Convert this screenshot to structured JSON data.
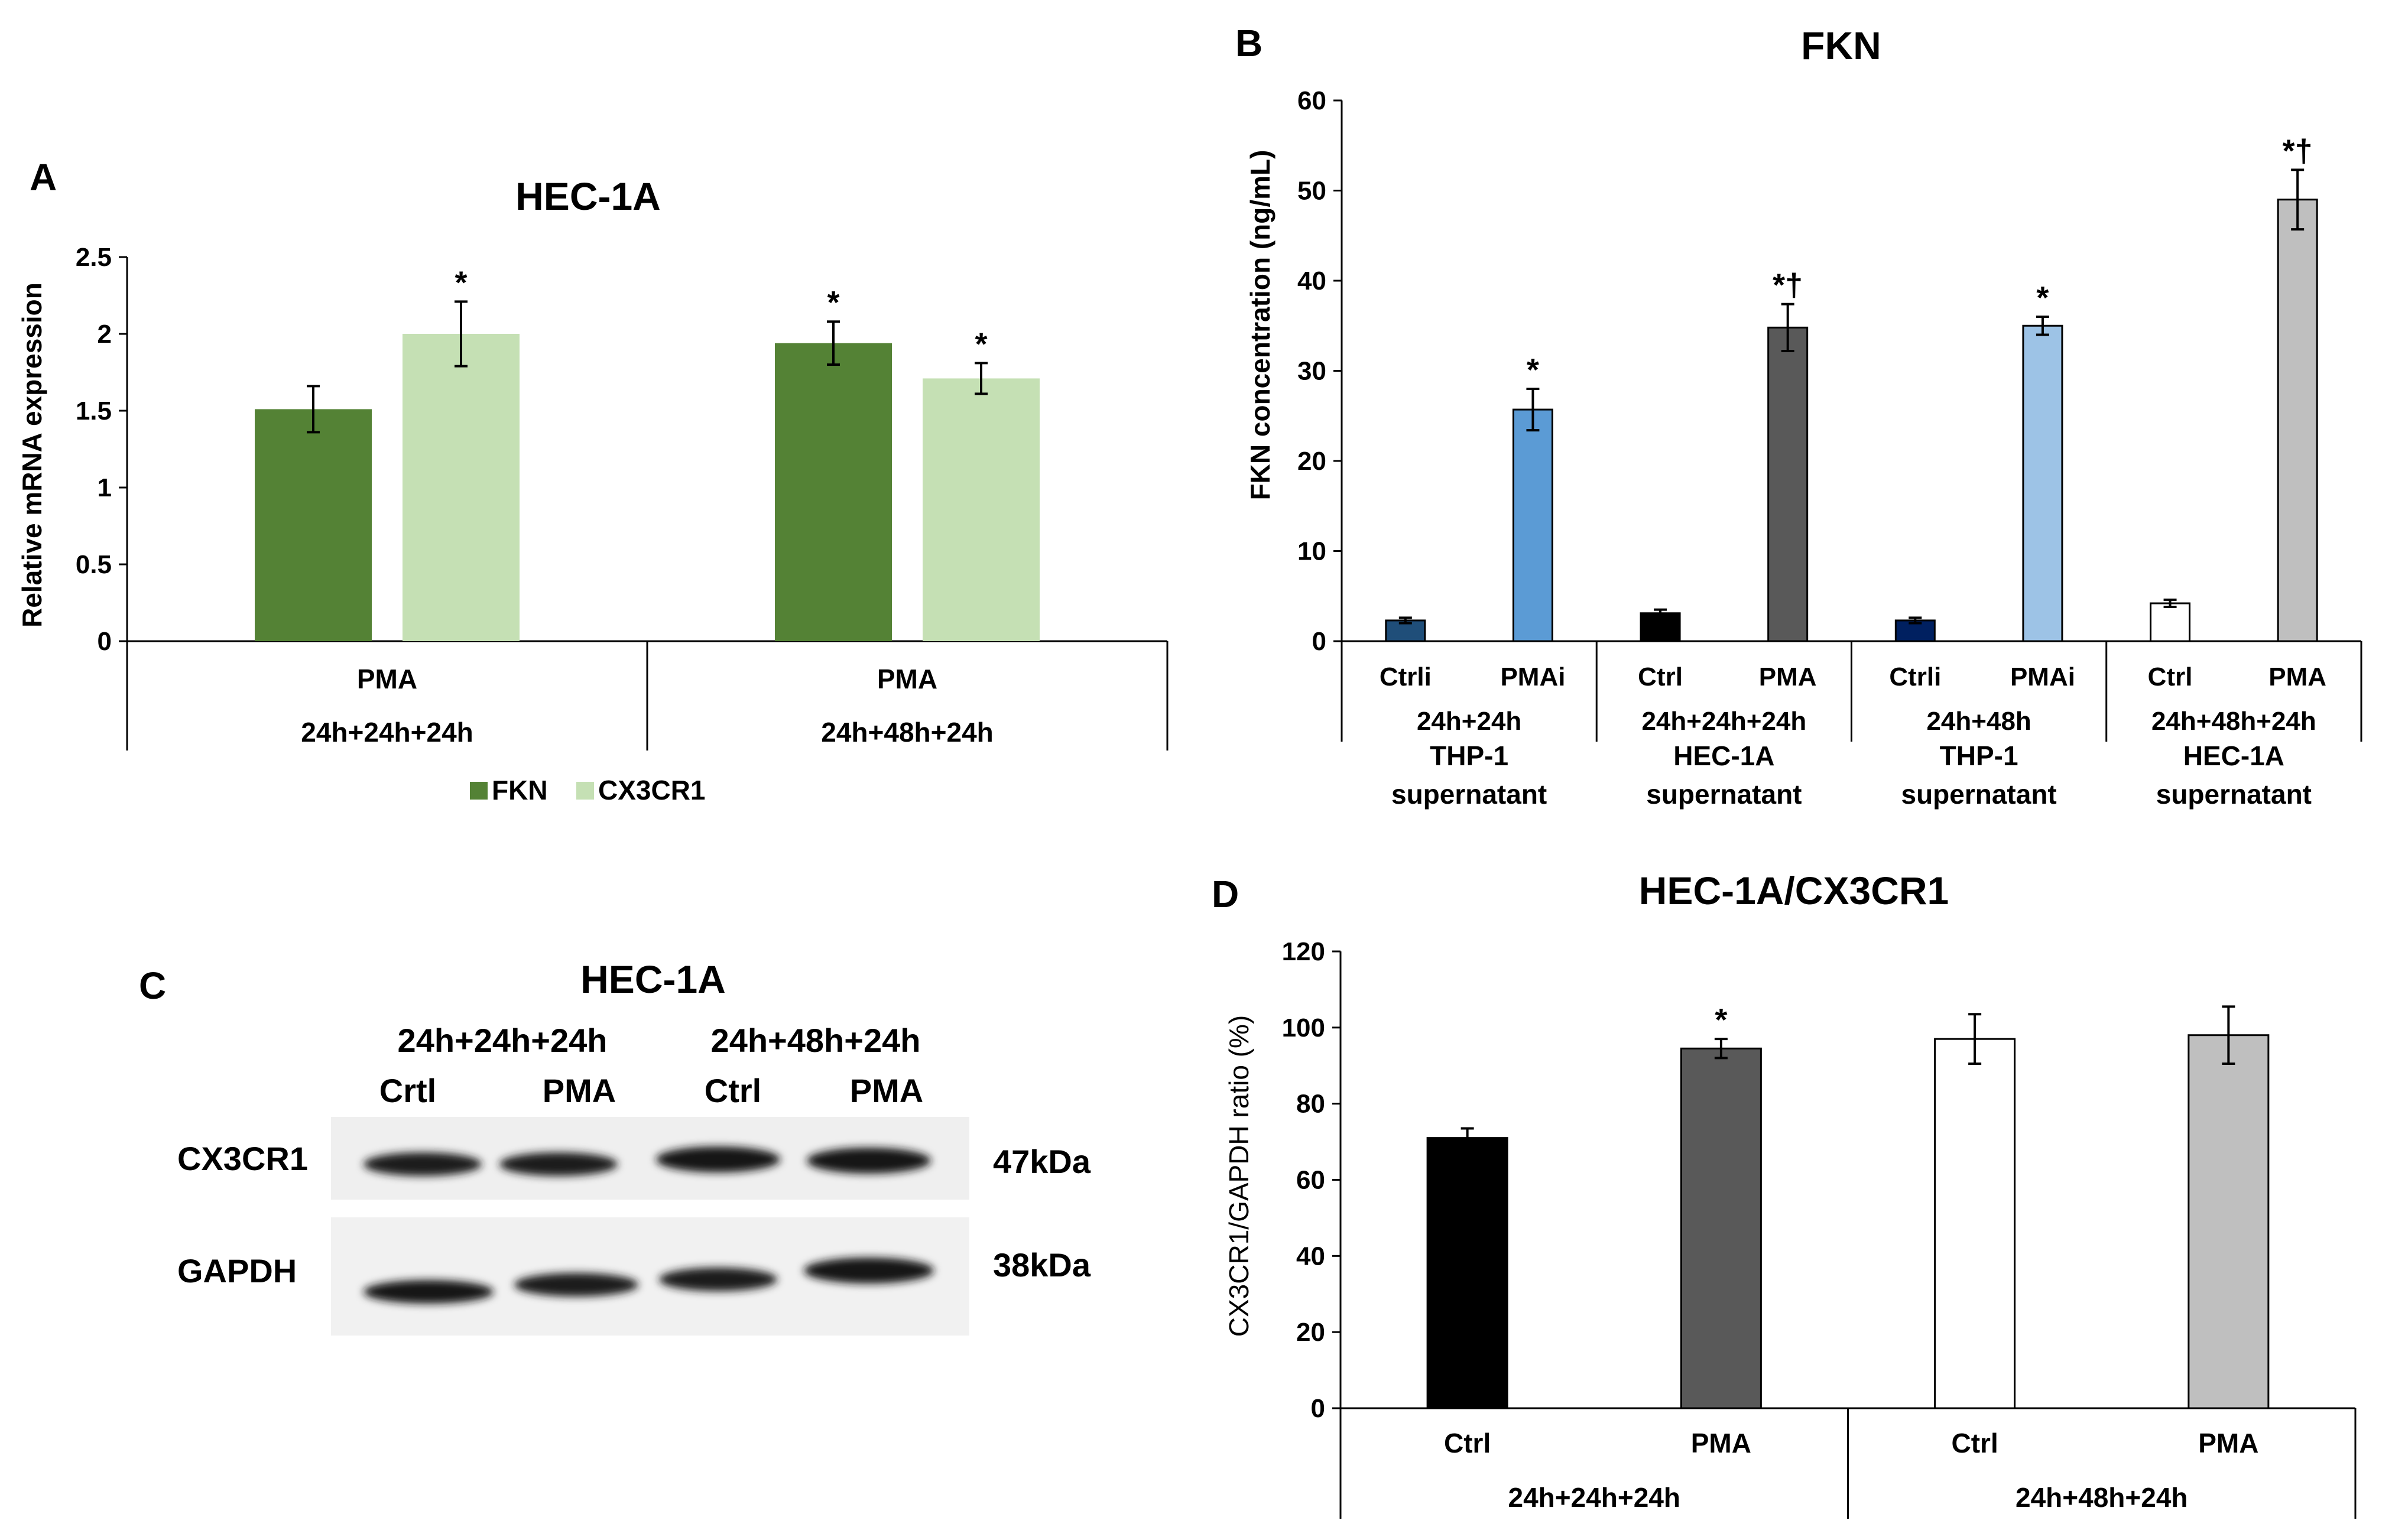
{
  "chart_data": [
    {
      "panel": "A",
      "type": "bar",
      "title": "HEC-1A",
      "ylabel": "Relative mRNA expression",
      "ylim": [
        0,
        2.5
      ],
      "yticks": [
        "0",
        "0.5",
        "1",
        "1.5",
        "2",
        "2.5"
      ],
      "groups": [
        {
          "top": "PMA",
          "bottom": "24h+24h+24h"
        },
        {
          "top": "PMA",
          "bottom": "24h+48h+24h"
        }
      ],
      "series": [
        {
          "name": "FKN",
          "color": "#548235",
          "values": [
            1.51,
            1.94
          ],
          "errors": [
            0.15,
            0.14
          ],
          "annotations": [
            "",
            "*"
          ]
        },
        {
          "name": "CX3CR1",
          "color": "#c5e0b4",
          "values": [
            2.0,
            1.71
          ],
          "errors": [
            0.21,
            0.1
          ],
          "annotations": [
            "*",
            "*"
          ]
        }
      ],
      "legend": "bottom"
    },
    {
      "panel": "B",
      "type": "bar",
      "title": "FKN",
      "ylabel": "FKN concentration (ng/mL)",
      "ylim": [
        0,
        60
      ],
      "yticks": [
        "0",
        "10",
        "20",
        "30",
        "40",
        "50",
        "60"
      ],
      "categories": [
        "Ctrli",
        "PMAi",
        "Ctrl",
        "PMA",
        "Ctrli",
        "PMAi",
        "Ctrl",
        "PMA"
      ],
      "values": [
        2.3,
        25.7,
        3.1,
        34.8,
        2.3,
        35.0,
        4.2,
        49.0
      ],
      "errors": [
        0.3,
        2.3,
        0.4,
        2.6,
        0.3,
        1.0,
        0.4,
        3.3
      ],
      "colors": [
        "#1f4e79",
        "#5b9bd5",
        "#000000",
        "#595959",
        "#002060",
        "#9dc3e6",
        "#ffffff",
        "#bfbfbf"
      ],
      "annotations": [
        "",
        "*",
        "",
        "*†",
        "",
        "*",
        "",
        "*†"
      ],
      "groups": [
        {
          "time": "24h+24h",
          "line1": "THP-1",
          "line2": "supernatant"
        },
        {
          "time": "24h+24h+24h",
          "line1": "HEC-1A",
          "line2": "supernatant"
        },
        {
          "time": "24h+48h",
          "line1": "THP-1",
          "line2": "supernatant"
        },
        {
          "time": "24h+48h+24h",
          "line1": "HEC-1A",
          "line2": "supernatant"
        }
      ]
    },
    {
      "panel": "D",
      "type": "bar",
      "title": "HEC-1A/CX3CR1",
      "ylabel": "CX3CR1/GAPDH  ratio (%)",
      "ylim": [
        0,
        120
      ],
      "yticks": [
        "0",
        "20",
        "40",
        "60",
        "80",
        "100",
        "120"
      ],
      "categories": [
        "Ctrl",
        "PMA",
        "Ctrl",
        "PMA"
      ],
      "values": [
        71,
        94.5,
        97,
        98
      ],
      "errors": [
        2.5,
        2.5,
        6.5,
        7.5
      ],
      "colors": [
        "#000000",
        "#595959",
        "#ffffff",
        "#bfbfbf"
      ],
      "annotations": [
        "",
        "*",
        "",
        ""
      ],
      "groups": [
        "24h+24h+24h",
        "24h+48h+24h"
      ]
    }
  ],
  "blot": {
    "panel": "C",
    "title": "HEC-1A",
    "groups": [
      "24h+24h+24h",
      "24h+48h+24h"
    ],
    "lanes": [
      "Crtl",
      "PMA",
      "Ctrl",
      "PMA"
    ],
    "rows": [
      {
        "label": "CX3CR1",
        "size": "47kDa"
      },
      {
        "label": "GAPDH",
        "size": "38kDa"
      }
    ]
  }
}
